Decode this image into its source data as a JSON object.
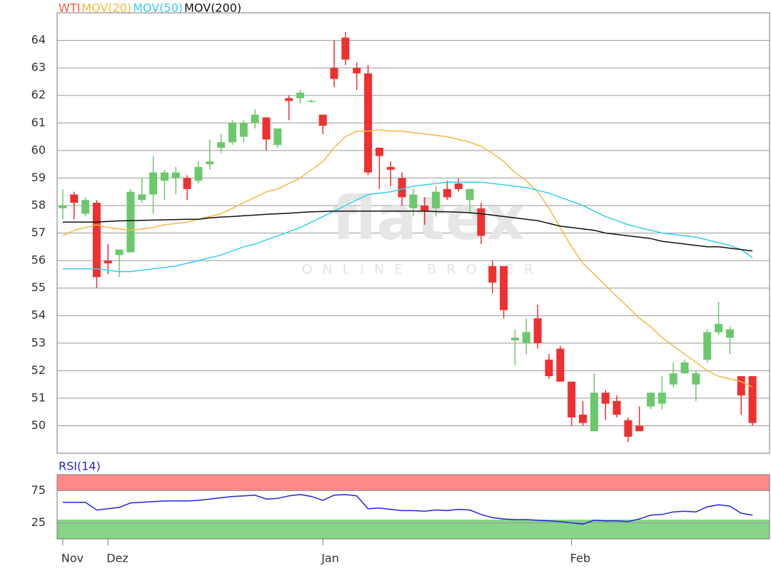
{
  "chart_data": [
    {
      "type": "candlestick",
      "watermark": "flatex",
      "watermark_sub": "ONLINE BROKER",
      "categories": [
        "Nov",
        null,
        null,
        null,
        "Dez",
        null,
        null,
        null,
        null,
        null,
        null,
        null,
        null,
        null,
        null,
        null,
        null,
        null,
        null,
        null,
        null,
        null,
        null,
        "Jan",
        null,
        null,
        null,
        null,
        null,
        null,
        null,
        null,
        null,
        null,
        null,
        null,
        null,
        null,
        null,
        null,
        null,
        null,
        null,
        null,
        null,
        "Feb",
        null,
        null,
        null,
        null,
        null,
        null,
        null,
        null,
        null,
        null,
        null,
        null,
        null,
        null,
        null,
        null
      ],
      "ylim": [
        49,
        65
      ],
      "yticks": [
        50,
        51,
        52,
        53,
        54,
        55,
        56,
        57,
        58,
        59,
        60,
        61,
        62,
        63,
        64
      ],
      "grid": true,
      "ohlc": {
        "name": "WTI",
        "color": "#f0603c",
        "up_color": "#6cc86c",
        "down_color": "#ee3030",
        "open": [
          57.9,
          58.4,
          57.7,
          58.1,
          56.0,
          56.2,
          56.3,
          58.2,
          58.4,
          58.9,
          59.0,
          59.0,
          58.9,
          59.5,
          60.1,
          60.3,
          60.5,
          61.0,
          61.2,
          60.2,
          61.9,
          61.9,
          61.8,
          61.3,
          63.0,
          64.1,
          63.0,
          62.8,
          60.1,
          59.4,
          59.0,
          57.9,
          58.0,
          57.9,
          58.6,
          58.8,
          58.2,
          57.9,
          55.8,
          55.8,
          53.1,
          53.0,
          53.9,
          52.4,
          52.8,
          51.6,
          50.4,
          49.8,
          51.2,
          50.9,
          50.2,
          50.0,
          50.7,
          50.8,
          51.5,
          51.9,
          51.5,
          52.4,
          53.4,
          53.2,
          51.8,
          51.8
        ],
        "high": [
          58.6,
          58.5,
          58.3,
          58.2,
          56.6,
          56.4,
          58.6,
          59.0,
          59.8,
          59.3,
          59.4,
          59.1,
          59.6,
          60.4,
          60.6,
          61.1,
          61.1,
          61.5,
          61.2,
          60.8,
          62.0,
          62.2,
          61.85,
          61.3,
          64.0,
          64.3,
          63.2,
          63.1,
          60.1,
          59.6,
          59.2,
          58.6,
          58.3,
          58.7,
          58.9,
          59.0,
          58.6,
          58.1,
          56.0,
          55.8,
          53.5,
          53.9,
          54.4,
          52.6,
          52.9,
          51.6,
          50.9,
          51.9,
          51.3,
          51.1,
          50.3,
          50.7,
          51.2,
          51.8,
          52.3,
          52.4,
          52.0,
          53.5,
          54.5,
          53.6,
          51.8,
          51.8
        ],
        "low": [
          57.5,
          57.5,
          57.6,
          55.0,
          55.5,
          55.4,
          56.3,
          58.1,
          57.7,
          58.2,
          58.4,
          58.2,
          58.8,
          59.3,
          59.9,
          60.2,
          60.3,
          60.8,
          60.0,
          60.1,
          61.1,
          61.7,
          61.75,
          60.6,
          62.3,
          63.1,
          62.2,
          59.1,
          58.6,
          58.7,
          58.0,
          57.6,
          57.3,
          57.6,
          58.2,
          58.5,
          57.7,
          56.6,
          54.8,
          53.9,
          52.2,
          52.6,
          52.8,
          51.7,
          51.6,
          50.0,
          50.0,
          49.8,
          50.2,
          50.3,
          49.4,
          49.8,
          50.6,
          50.6,
          51.4,
          51.9,
          50.9,
          52.3,
          53.3,
          52.6,
          50.4,
          50.0
        ],
        "close": [
          58.0,
          58.1,
          58.2,
          55.4,
          55.9,
          56.4,
          58.5,
          58.4,
          59.2,
          59.2,
          59.2,
          58.6,
          59.4,
          59.6,
          60.3,
          61.0,
          61.0,
          61.3,
          60.4,
          60.8,
          61.8,
          62.1,
          61.8,
          60.9,
          62.6,
          63.3,
          62.8,
          59.2,
          59.8,
          59.3,
          58.3,
          58.4,
          57.8,
          58.5,
          58.3,
          58.6,
          58.6,
          56.9,
          55.2,
          54.2,
          53.2,
          53.4,
          53.0,
          51.8,
          51.6,
          50.3,
          50.1,
          51.2,
          50.8,
          50.4,
          49.6,
          49.8,
          51.2,
          51.2,
          51.9,
          52.3,
          51.9,
          53.4,
          53.7,
          53.5,
          51.1,
          50.1
        ]
      },
      "series": [
        {
          "name": "MOV(20)",
          "color": "#f8b840",
          "values": [
            56.9,
            57.1,
            57.2,
            57.3,
            57.2,
            57.15,
            57.1,
            57.15,
            57.2,
            57.3,
            57.35,
            57.4,
            57.5,
            57.6,
            57.7,
            57.9,
            58.1,
            58.3,
            58.5,
            58.6,
            58.8,
            59.0,
            59.3,
            59.6,
            60.1,
            60.5,
            60.7,
            60.7,
            60.75,
            60.7,
            60.7,
            60.65,
            60.6,
            60.55,
            60.5,
            60.4,
            60.3,
            60.15,
            59.9,
            59.6,
            59.2,
            58.9,
            58.5,
            57.9,
            57.2,
            56.5,
            55.9,
            55.5,
            55.1,
            54.7,
            54.3,
            53.9,
            53.6,
            53.2,
            52.9,
            52.6,
            52.3,
            52.0,
            51.8,
            51.7,
            51.6,
            51.4
          ]
        },
        {
          "name": "MOV(50)",
          "color": "#38ccf0",
          "values": [
            55.7,
            55.7,
            55.7,
            55.7,
            55.65,
            55.6,
            55.6,
            55.65,
            55.7,
            55.75,
            55.8,
            55.9,
            56.0,
            56.1,
            56.2,
            56.35,
            56.5,
            56.6,
            56.75,
            56.9,
            57.05,
            57.2,
            57.4,
            57.6,
            57.8,
            58.0,
            58.2,
            58.4,
            58.45,
            58.5,
            58.6,
            58.7,
            58.75,
            58.8,
            58.85,
            58.85,
            58.85,
            58.85,
            58.8,
            58.75,
            58.7,
            58.65,
            58.55,
            58.45,
            58.3,
            58.15,
            58.0,
            57.8,
            57.6,
            57.45,
            57.3,
            57.2,
            57.1,
            57.0,
            56.95,
            56.9,
            56.85,
            56.75,
            56.65,
            56.55,
            56.4,
            56.1
          ]
        },
        {
          "name": "MOV(200)",
          "color": "#111111",
          "values": [
            57.4,
            57.4,
            57.4,
            57.4,
            57.42,
            57.44,
            57.45,
            57.46,
            57.47,
            57.48,
            57.49,
            57.5,
            57.5,
            57.55,
            57.58,
            57.6,
            57.63,
            57.65,
            57.68,
            57.7,
            57.72,
            57.75,
            57.77,
            57.78,
            57.8,
            57.8,
            57.8,
            57.8,
            57.8,
            57.8,
            57.8,
            57.8,
            57.8,
            57.78,
            57.77,
            57.76,
            57.74,
            57.7,
            57.65,
            57.6,
            57.55,
            57.5,
            57.45,
            57.35,
            57.25,
            57.2,
            57.15,
            57.1,
            57.0,
            56.95,
            56.9,
            56.85,
            56.8,
            56.7,
            56.65,
            56.6,
            56.55,
            56.5,
            56.5,
            56.45,
            56.4,
            56.35
          ]
        }
      ]
    },
    {
      "type": "line",
      "ylim": [
        0,
        100
      ],
      "yticks": [
        25,
        75
      ],
      "grid": true,
      "bands": [
        {
          "range": [
            75,
            100
          ],
          "color": "#ff8a8a"
        },
        {
          "range": [
            0,
            30
          ],
          "color": "#88d488"
        }
      ],
      "series": [
        {
          "name": "RSI(14)",
          "color": "#2424e0",
          "values": [
            57,
            57,
            57,
            45,
            47,
            49,
            56,
            57,
            58,
            59,
            59,
            59,
            60,
            62,
            64,
            66,
            67,
            68,
            62,
            63,
            67,
            69,
            66,
            60,
            68,
            69,
            67,
            47,
            48,
            46,
            44,
            44,
            43,
            45,
            44,
            46,
            45,
            38,
            33,
            31,
            30,
            30,
            29,
            28,
            27,
            25,
            23,
            29,
            28,
            28,
            27,
            31,
            37,
            38,
            42,
            43,
            42,
            50,
            53,
            51,
            40,
            37
          ]
        }
      ]
    }
  ]
}
